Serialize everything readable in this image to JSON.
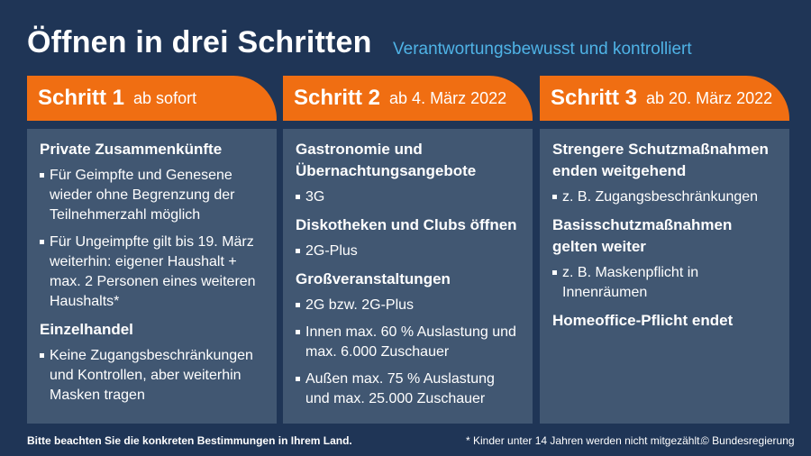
{
  "header": {
    "title": "Öffnen in drei Schritten",
    "subtitle": "Verantwortungsbewusst und kontrolliert"
  },
  "steps": [
    {
      "label": "Schritt 1",
      "date": "ab sofort",
      "sections": [
        {
          "heading": "Private Zusammenkünfte",
          "items": [
            "Für Geimpfte und Genesene wieder ohne Begrenzung der Teilnehmerzahl möglich",
            "Für Ungeimpfte gilt bis 19. März weiterhin: eigener Haushalt + max. 2 Personen eines weiteren Haushalts*"
          ]
        },
        {
          "heading": "Einzelhandel",
          "items": [
            "Keine Zugangsbeschränkungen und Kontrollen, aber weiterhin Masken tragen"
          ]
        }
      ]
    },
    {
      "label": "Schritt 2",
      "date": "ab 4. März 2022",
      "sections": [
        {
          "heading": "Gastronomie und Übernachtungsangebote",
          "items": [
            "3G"
          ]
        },
        {
          "heading": "Diskotheken und Clubs öffnen",
          "items": [
            "2G-Plus"
          ]
        },
        {
          "heading": "Großveranstaltungen",
          "items": [
            "2G bzw. 2G-Plus",
            "Innen max. 60 % Auslastung und max. 6.000 Zuschauer",
            "Außen max. 75 % Auslastung und max. 25.000 Zuschauer"
          ]
        }
      ]
    },
    {
      "label": "Schritt 3",
      "date": "ab 20. März 2022",
      "sections": [
        {
          "heading": "Strengere Schutzmaßnahmen enden weitgehend",
          "items": [
            "z. B. Zugangsbeschränkungen"
          ]
        },
        {
          "heading": "Basisschutzmaßnahmen gelten weiter",
          "items": [
            "z. B. Maskenpflicht in Innenräumen"
          ]
        },
        {
          "heading": "Homeoffice-Pflicht endet",
          "items": []
        }
      ]
    }
  ],
  "footer": {
    "notice": "Bitte beachten Sie die konkreten Bestimmungen in Ihrem Land.",
    "footnote": "* Kinder unter 14 Jahren werden nicht mitgezählt.",
    "copyright": "© Bundesregierung"
  },
  "colors": {
    "background": "#1f3556",
    "accent": "#f06e12",
    "card": "#415772",
    "subtitle": "#4fb3e6"
  }
}
